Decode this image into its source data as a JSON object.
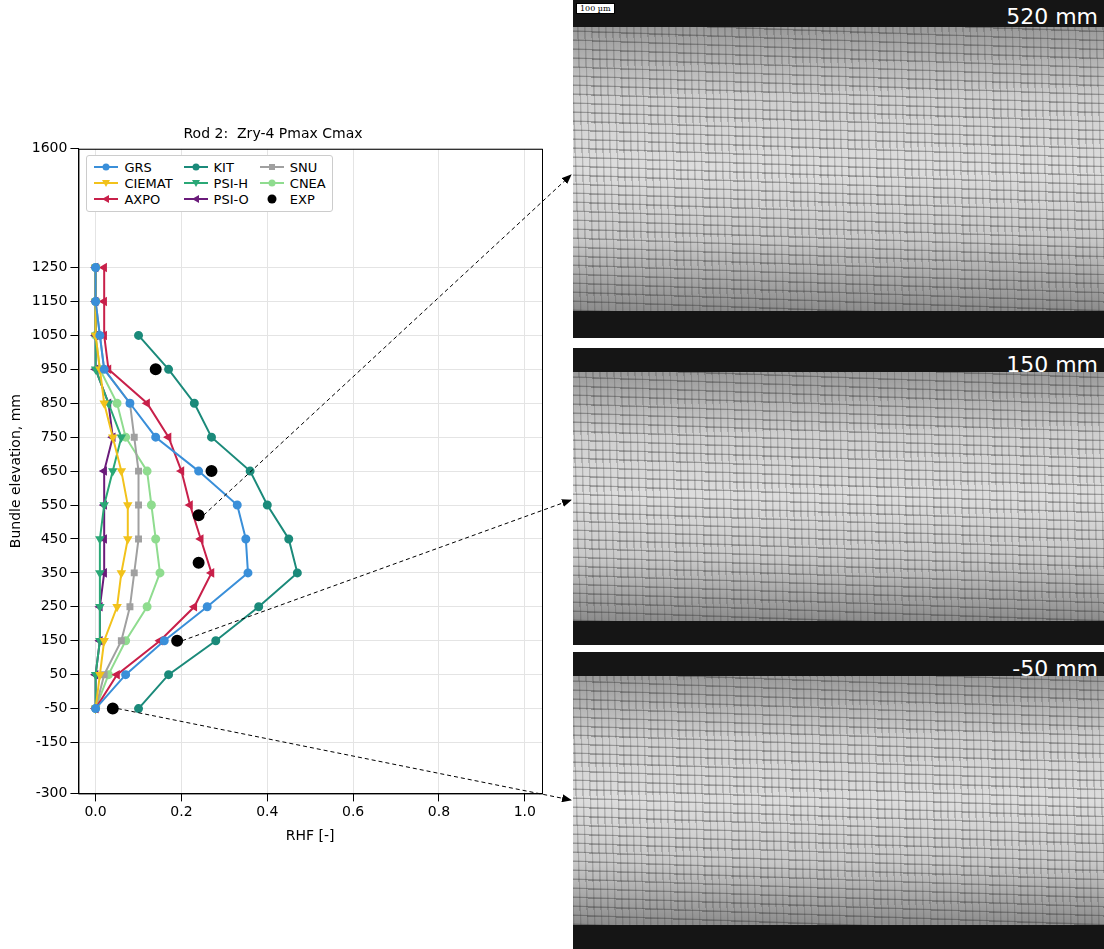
{
  "chart_data": {
    "type": "line",
    "title": "Rod 2:  Zry-4 Pmax Cmax",
    "x_label": "RHF [-]",
    "y_label": "Bundle elevation, mm",
    "xlim": [
      -0.04,
      1.04
    ],
    "xticks": [
      {
        "value": 0,
        "label": "0.0"
      },
      {
        "value": 0.2,
        "label": "0.2"
      },
      {
        "value": 0.4,
        "label": "0.4"
      },
      {
        "value": 0.6,
        "label": "0.6"
      },
      {
        "value": 0.8,
        "label": "0.8"
      },
      {
        "value": 1,
        "label": "1.0"
      }
    ],
    "ylim": [
      -300,
      1600
    ],
    "yticks": [
      -300,
      -150,
      -50,
      50,
      150,
      250,
      350,
      450,
      550,
      650,
      750,
      850,
      950,
      1050,
      1150,
      1250,
      1600
    ],
    "grid": true,
    "legend": "upper left",
    "series": [
      {
        "name": "GRS",
        "color": "#3a8fd9",
        "marker": "circle",
        "line_style": "solid",
        "x": [
          0.0,
          0.07,
          0.16,
          0.26,
          0.355,
          0.35,
          0.33,
          0.24,
          0.14,
          0.08,
          0.02,
          0.01,
          0.0,
          0.0
        ],
        "y": [
          -50,
          50,
          150,
          250,
          350,
          450,
          550,
          650,
          750,
          850,
          950,
          1050,
          1150,
          1250
        ]
      },
      {
        "name": "CIEMAT",
        "color": "#f2c21b",
        "marker": "triangle_down",
        "line_style": "solid",
        "x": [
          0.0,
          0.01,
          0.02,
          0.05,
          0.06,
          0.075,
          0.075,
          0.06,
          0.04,
          0.02,
          0.01,
          0.0,
          0.0,
          0.0
        ],
        "y": [
          -50,
          50,
          150,
          250,
          350,
          450,
          550,
          650,
          750,
          850,
          950,
          1050,
          1150,
          1250
        ]
      },
      {
        "name": "AXPO",
        "color": "#c8204a",
        "marker": "triangle_left",
        "line_style": "solid",
        "x": [
          0.0,
          0.05,
          0.15,
          0.23,
          0.27,
          0.245,
          0.22,
          0.2,
          0.17,
          0.12,
          0.03,
          0.02,
          0.02,
          0.02
        ],
        "y": [
          -50,
          50,
          150,
          250,
          350,
          450,
          550,
          650,
          750,
          850,
          950,
          1050,
          1150,
          1250
        ]
      },
      {
        "name": "KIT",
        "color": "#1b8a7a",
        "marker": "circle",
        "line_style": "solid",
        "x": [
          0.1,
          0.17,
          0.28,
          0.38,
          0.47,
          0.45,
          0.4,
          0.36,
          0.27,
          0.23,
          0.17,
          0.1
        ],
        "y": [
          -50,
          50,
          150,
          250,
          350,
          450,
          550,
          650,
          750,
          850,
          950,
          1050
        ]
      },
      {
        "name": "PSI-H",
        "color": "#2aa876",
        "marker": "triangle_down",
        "line_style": "solid",
        "x": [
          0.0,
          0.0,
          0.01,
          0.01,
          0.01,
          0.01,
          0.02,
          0.04,
          0.06,
          0.03,
          0.0,
          0.0,
          0.0,
          0.0
        ],
        "y": [
          -50,
          50,
          150,
          250,
          350,
          450,
          550,
          650,
          750,
          850,
          950,
          1050,
          1150,
          1250
        ]
      },
      {
        "name": "PSI-O",
        "color": "#6a1b7a",
        "marker": "triangle_left",
        "line_style": "solid",
        "x": [
          0.0,
          0.0,
          0.01,
          0.01,
          0.02,
          0.02,
          0.02,
          0.02,
          0.04,
          0.03,
          0.0,
          0.0,
          0.0,
          0.0
        ],
        "y": [
          -50,
          50,
          150,
          250,
          350,
          450,
          550,
          650,
          750,
          850,
          950,
          1050,
          1150,
          1250
        ]
      },
      {
        "name": "SNU",
        "color": "#a0a0a0",
        "marker": "square",
        "line_style": "solid",
        "x": [
          0.0,
          0.02,
          0.06,
          0.08,
          0.09,
          0.1,
          0.1,
          0.1,
          0.09,
          0.08,
          0.02,
          0.01,
          0.0,
          0.0
        ],
        "y": [
          -50,
          50,
          150,
          250,
          350,
          450,
          550,
          650,
          750,
          850,
          950,
          1050,
          1150,
          1250
        ]
      },
      {
        "name": "CNEA",
        "color": "#8fdc8f",
        "marker": "circle",
        "line_style": "solid",
        "x": [
          0.0,
          0.03,
          0.07,
          0.12,
          0.15,
          0.14,
          0.13,
          0.12,
          0.07,
          0.05,
          0.01,
          0.0,
          0.0,
          0.0
        ],
        "y": [
          -50,
          50,
          150,
          250,
          350,
          450,
          550,
          650,
          750,
          850,
          950,
          1050,
          1150,
          1250
        ]
      },
      {
        "name": "EXP",
        "color": "#000000",
        "marker": "circle",
        "line_style": "none",
        "x": [
          0.04,
          0.19,
          0.24,
          0.24,
          0.27,
          0.14
        ],
        "y": [
          -50,
          150,
          380,
          520,
          650,
          950
        ]
      }
    ]
  },
  "micrographs": [
    {
      "label": "520 mm",
      "scale_bar": "100 µm",
      "points_to": [
        0.24,
        520
      ]
    },
    {
      "label": "150 mm",
      "points_to": [
        0.19,
        150
      ]
    },
    {
      "label": "-50 mm",
      "points_to": [
        0.04,
        -50
      ]
    }
  ]
}
